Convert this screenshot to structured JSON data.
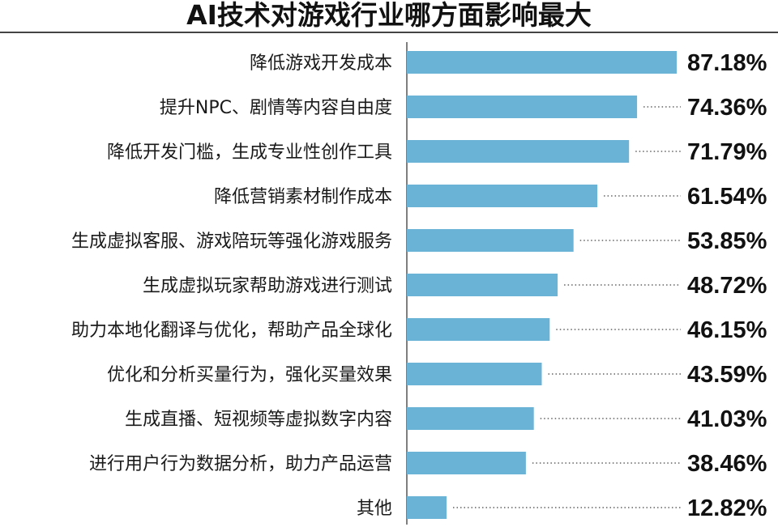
{
  "chart_data": {
    "type": "bar",
    "orientation": "horizontal",
    "title": "AI技术对游戏行业哪方面影响最大",
    "categories": [
      "降低游戏开发成本",
      "提升NPC、剧情等内容自由度",
      "降低开发门槛，生成专业性创作工具",
      "降低营销素材制作成本",
      "生成虚拟客服、游戏陪玩等强化游戏服务",
      "生成虚拟玩家帮助游戏进行测试",
      "助力本地化翻译与优化，帮助产品全球化",
      "优化和分析买量行为，强化买量效果",
      "生成直播、短视频等虚拟数字内容",
      "进行用户行为数据分析，助力产品运营",
      "其他"
    ],
    "values": [
      87.18,
      74.36,
      71.79,
      61.54,
      53.85,
      48.72,
      46.15,
      43.59,
      41.03,
      38.46,
      12.82
    ],
    "value_labels": [
      "87.18%",
      "74.36%",
      "71.79%",
      "61.54%",
      "53.85%",
      "48.72%",
      "46.15%",
      "43.59%",
      "41.03%",
      "38.46%",
      "12.82%"
    ],
    "xlim": [
      0,
      100
    ],
    "bar_color": "#6bb3d6",
    "axis_color": "#555555",
    "leader_color": "#888888",
    "grid": false,
    "legend": "none"
  }
}
